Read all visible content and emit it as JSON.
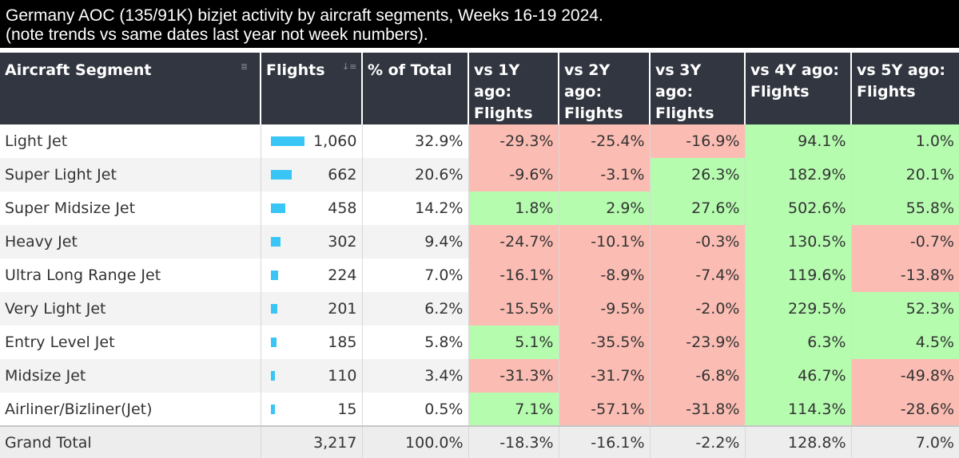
{
  "title": {
    "line1": "Germany AOC (135/91K) bizjet activity by aircraft segments, Weeks 16-19 2024.",
    "line2": "(note trends vs same dates last year not week numbers)."
  },
  "colors": {
    "header_bg": "#323640",
    "negative_fill": "#fbbdb3",
    "positive_fill": "#b5fcaf",
    "bar_fill": "#39c5f5"
  },
  "chart_data": {
    "type": "table",
    "columns": [
      "Aircraft Segment",
      "Flights",
      "% of Total",
      "vs 1Y ago: Flights",
      "vs 2Y ago: Flights",
      "vs 3Y ago: Flights",
      "vs 4Y ago: Flights",
      "vs 5Y ago: Flights"
    ],
    "header_lines": [
      [
        "Aircraft Segment"
      ],
      [
        "Flights"
      ],
      [
        "% of Total"
      ],
      [
        "vs 1Y ago:",
        "Flights"
      ],
      [
        "vs 2Y ago:",
        "Flights"
      ],
      [
        "vs 3Y ago:",
        "Flights"
      ],
      [
        "vs 4Y ago:",
        "Flights"
      ],
      [
        "vs 5Y ago:",
        "Flights"
      ]
    ],
    "bar_max": 1060,
    "rows": [
      {
        "segment": "Light Jet",
        "flights": 1060,
        "flights_label": "1,060",
        "pct_total": "32.9%",
        "vs": [
          "-29.3%",
          "-25.4%",
          "-16.9%",
          "94.1%",
          "1.0%"
        ],
        "vs_values": [
          -29.3,
          -25.4,
          -16.9,
          94.1,
          1.0
        ]
      },
      {
        "segment": "Super Light Jet",
        "flights": 662,
        "flights_label": "662",
        "pct_total": "20.6%",
        "vs": [
          "-9.6%",
          "-3.1%",
          "26.3%",
          "182.9%",
          "20.1%"
        ],
        "vs_values": [
          -9.6,
          -3.1,
          26.3,
          182.9,
          20.1
        ]
      },
      {
        "segment": "Super Midsize Jet",
        "flights": 458,
        "flights_label": "458",
        "pct_total": "14.2%",
        "vs": [
          "1.8%",
          "2.9%",
          "27.6%",
          "502.6%",
          "55.8%"
        ],
        "vs_values": [
          1.8,
          2.9,
          27.6,
          502.6,
          55.8
        ]
      },
      {
        "segment": "Heavy Jet",
        "flights": 302,
        "flights_label": "302",
        "pct_total": "9.4%",
        "vs": [
          "-24.7%",
          "-10.1%",
          "-0.3%",
          "130.5%",
          "-0.7%"
        ],
        "vs_values": [
          -24.7,
          -10.1,
          -0.3,
          130.5,
          -0.7
        ]
      },
      {
        "segment": "Ultra Long Range Jet",
        "flights": 224,
        "flights_label": "224",
        "pct_total": "7.0%",
        "vs": [
          "-16.1%",
          "-8.9%",
          "-7.4%",
          "119.6%",
          "-13.8%"
        ],
        "vs_values": [
          -16.1,
          -8.9,
          -7.4,
          119.6,
          -13.8
        ]
      },
      {
        "segment": "Very Light Jet",
        "flights": 201,
        "flights_label": "201",
        "pct_total": "6.2%",
        "vs": [
          "-15.5%",
          "-9.5%",
          "-2.0%",
          "229.5%",
          "52.3%"
        ],
        "vs_values": [
          -15.5,
          -9.5,
          -2.0,
          229.5,
          52.3
        ]
      },
      {
        "segment": "Entry Level Jet",
        "flights": 185,
        "flights_label": "185",
        "pct_total": "5.8%",
        "vs": [
          "5.1%",
          "-35.5%",
          "-23.9%",
          "6.3%",
          "4.5%"
        ],
        "vs_values": [
          5.1,
          -35.5,
          -23.9,
          6.3,
          4.5
        ]
      },
      {
        "segment": "Midsize Jet",
        "flights": 110,
        "flights_label": "110",
        "pct_total": "3.4%",
        "vs": [
          "-31.3%",
          "-31.7%",
          "-6.8%",
          "46.7%",
          "-49.8%"
        ],
        "vs_values": [
          -31.3,
          -31.7,
          -6.8,
          46.7,
          -49.8
        ]
      },
      {
        "segment": "Airliner/Bizliner(Jet)",
        "flights": 15,
        "flights_label": "15",
        "pct_total": "0.5%",
        "vs": [
          "7.1%",
          "-57.1%",
          "-31.8%",
          "114.3%",
          "-28.6%"
        ],
        "vs_values": [
          7.1,
          -57.1,
          -31.8,
          114.3,
          -28.6
        ]
      }
    ],
    "total": {
      "segment": "Grand Total",
      "flights": 3217,
      "flights_label": "3,217",
      "pct_total": "100.0%",
      "vs": [
        "-18.3%",
        "-16.1%",
        "-2.2%",
        "128.8%",
        "7.0%"
      ]
    }
  }
}
